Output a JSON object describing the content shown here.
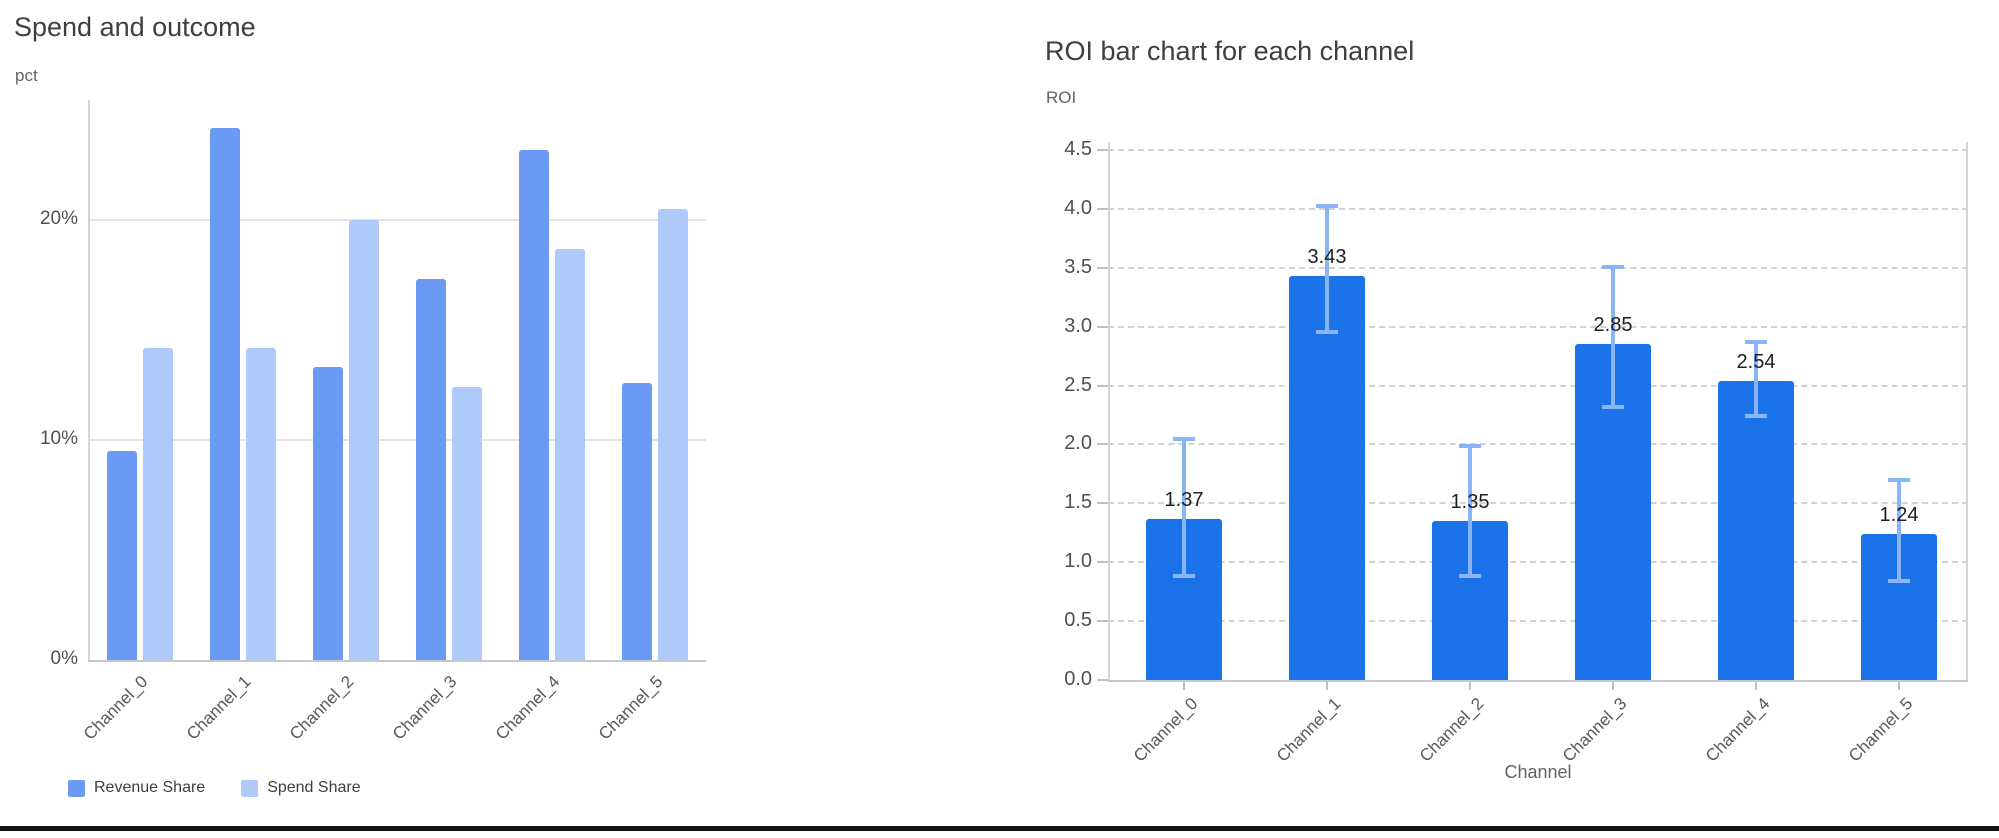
{
  "chart_data": [
    {
      "type": "bar",
      "title": "Spend and outcome",
      "ylabel": "pct",
      "xlabel": "",
      "categories": [
        "Channel_0",
        "Channel_1",
        "Channel_2",
        "Channel_3",
        "Channel_4",
        "Channel_5"
      ],
      "series": [
        {
          "name": "Revenue Share",
          "color": "#6b9af4",
          "values": [
            9.5,
            24.2,
            13.3,
            17.3,
            23.2,
            12.6
          ]
        },
        {
          "name": "Spend Share",
          "color": "#aecafa",
          "values": [
            14.2,
            14.2,
            20.0,
            12.4,
            18.7,
            20.5
          ]
        }
      ],
      "y_ticks": [
        {
          "value": 0,
          "label": "0%"
        },
        {
          "value": 10,
          "label": "10%"
        },
        {
          "value": 20,
          "label": "20%"
        }
      ],
      "ylim": [
        0,
        25.5
      ],
      "unit": "%",
      "grid": "solid",
      "legend_position": "bottom"
    },
    {
      "type": "bar",
      "title": "ROI bar chart for each channel",
      "ylabel": "ROI",
      "xlabel": "Channel",
      "categories": [
        "Channel_0",
        "Channel_1",
        "Channel_2",
        "Channel_3",
        "Channel_4",
        "Channel_5"
      ],
      "series": [
        {
          "name": "ROI",
          "color": "#1a73e8",
          "values": [
            1.37,
            3.43,
            1.35,
            2.85,
            2.54,
            1.24
          ]
        }
      ],
      "data_labels": [
        "1.37",
        "3.43",
        "1.35",
        "2.85",
        "2.54",
        "1.24"
      ],
      "error_bars": {
        "color": "#8ab4f8",
        "low": [
          0.88,
          2.95,
          0.88,
          2.32,
          2.24,
          0.84
        ],
        "high": [
          2.05,
          4.02,
          1.99,
          3.51,
          2.87,
          1.7
        ]
      },
      "y_ticks": [
        {
          "value": 0.0,
          "label": "0.0"
        },
        {
          "value": 0.5,
          "label": "0.5"
        },
        {
          "value": 1.0,
          "label": "1.0"
        },
        {
          "value": 1.5,
          "label": "1.5"
        },
        {
          "value": 2.0,
          "label": "2.0"
        },
        {
          "value": 2.5,
          "label": "2.5"
        },
        {
          "value": 3.0,
          "label": "3.0"
        },
        {
          "value": 3.5,
          "label": "3.5"
        },
        {
          "value": 4.0,
          "label": "4.0"
        },
        {
          "value": 4.5,
          "label": "4.5"
        }
      ],
      "ylim": [
        0,
        4.5
      ],
      "grid": "dashed",
      "legend_position": "none"
    }
  ]
}
